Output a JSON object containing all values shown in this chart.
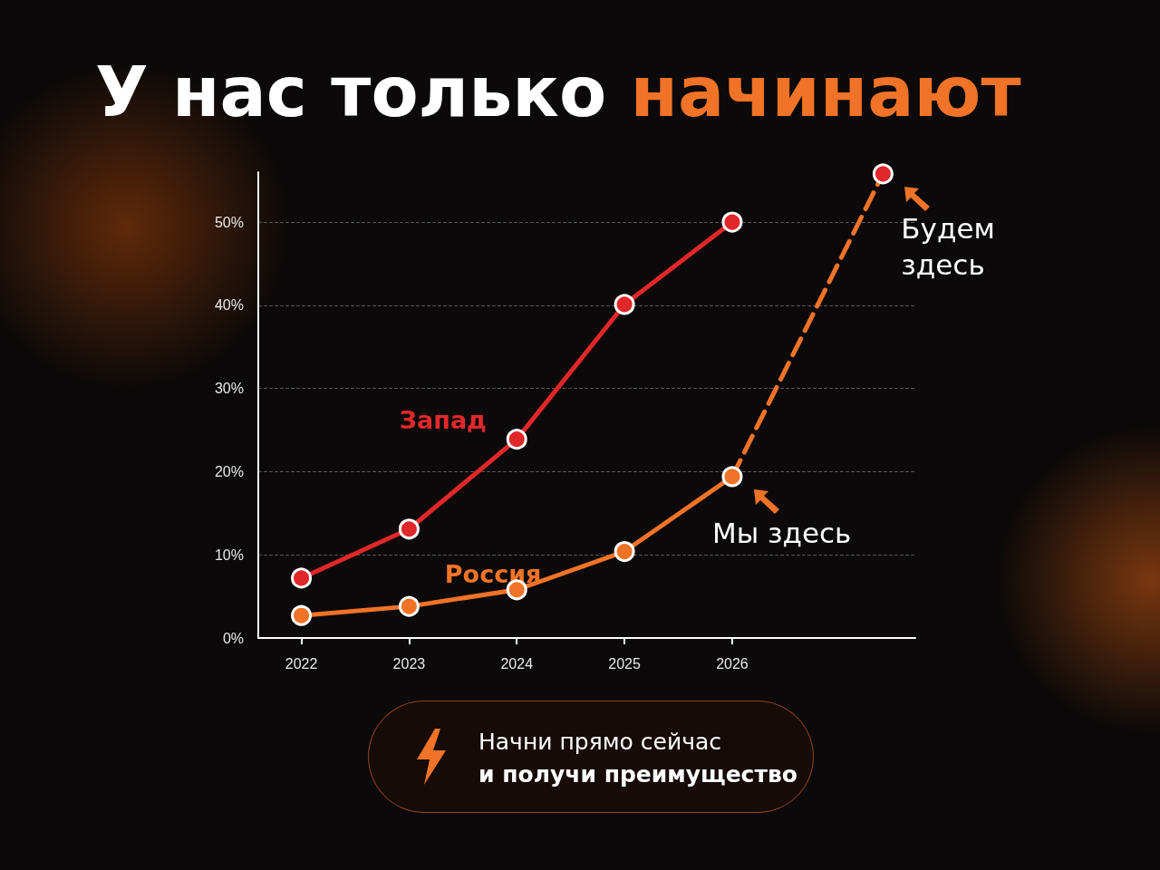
{
  "chart_data": {
    "type": "line",
    "title": "У нас только начинают",
    "x": [
      2022,
      2023,
      2024,
      2025,
      2026
    ],
    "xlim": [
      2021.6,
      2027.7
    ],
    "xticks": [
      2022,
      2023,
      2024,
      2025,
      2026
    ],
    "ylim": [
      0,
      56
    ],
    "yticks": [
      {
        "value": 0,
        "label": "0%"
      },
      {
        "value": 10,
        "label": "10%"
      },
      {
        "value": 20,
        "label": "20%"
      },
      {
        "value": 30,
        "label": "30%"
      },
      {
        "value": 40,
        "label": "40%"
      },
      {
        "value": 50,
        "label": "50%"
      }
    ],
    "grid": "y",
    "legend": false,
    "marker": "circle",
    "series": [
      {
        "name": "Запад",
        "color": "#e0282a",
        "values": [
          7.2,
          13.1,
          23.9,
          40.1,
          50
        ]
      },
      {
        "name": "Россия",
        "color": "#f07328",
        "values": [
          2.7,
          3.8,
          5.8,
          10.4,
          19.4
        ]
      },
      {
        "type": "line",
        "line_style": "dashed",
        "color": "#f07328",
        "colors": [
          "#f07328",
          "#e0282a"
        ],
        "x": [
          2026,
          2027.4
        ],
        "values": [
          19.4,
          55.8
        ]
      }
    ],
    "annotations": [
      {
        "text": "Мы здесь",
        "x": 2026,
        "y": 19.4
      },
      {
        "text": "Будем здесь",
        "x": 2027.4,
        "y": 55.8
      },
      "Начни прямо сейчас",
      "и получи преимущество"
    ]
  }
}
